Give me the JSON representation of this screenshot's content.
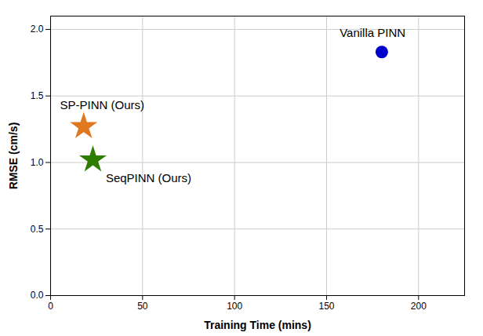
{
  "chart_data": {
    "type": "scatter",
    "xlabel": "Training Time (mins)",
    "ylabel": "RMSE (cm/s)",
    "xlim": [
      0,
      225
    ],
    "ylim": [
      0.0,
      2.1
    ],
    "xticks": [
      0,
      50,
      100,
      150,
      200
    ],
    "yticks": [
      0.0,
      0.5,
      1.0,
      1.5,
      2.0
    ],
    "grid": true,
    "series": [
      {
        "name": "Vanilla PINN",
        "color": "#0000cc",
        "marker": "circle",
        "x": [
          180
        ],
        "values": [
          1.83
        ]
      },
      {
        "name": "SP-PINN (Ours)",
        "color": "#e07820",
        "marker": "star",
        "x": [
          18
        ],
        "values": [
          1.27
        ]
      },
      {
        "name": "SeqPINN (Ours)",
        "color": "#2e7d00",
        "marker": "star",
        "x": [
          23
        ],
        "values": [
          1.02
        ]
      }
    ],
    "annotations": [
      {
        "text": "Vanilla PINN",
        "x": 175,
        "y": 1.97
      },
      {
        "text": "SP-PINN (Ours)",
        "x": 28,
        "y": 1.43
      },
      {
        "text": "SeqPINN (Ours)",
        "x": 30,
        "y": 0.88
      }
    ]
  }
}
